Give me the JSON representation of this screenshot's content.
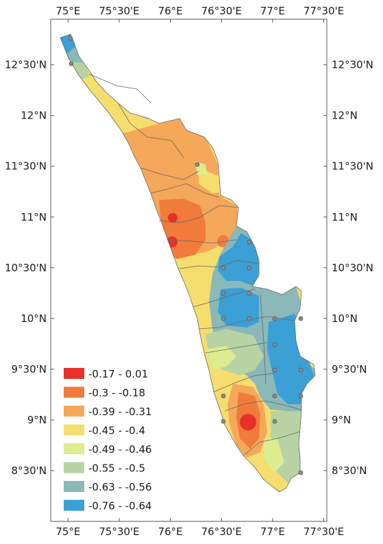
{
  "map": {
    "longitude_labels": [
      "75°E",
      "75°30'E",
      "76°E",
      "76°30'E",
      "77°E",
      "77°30'E"
    ],
    "longitude_values": [
      75.0,
      75.5,
      76.0,
      76.5,
      77.0,
      77.5
    ],
    "latitude_labels": [
      "12°30'N",
      "12°N",
      "11°30'N",
      "11°N",
      "10°30'N",
      "10°N",
      "9°30'N",
      "9°N",
      "8°30'N"
    ],
    "latitude_values": [
      12.5,
      12.0,
      11.5,
      11.0,
      10.5,
      10.0,
      9.5,
      9.0,
      8.5
    ],
    "extent": {
      "lon_min": 74.83,
      "lon_max": 77.53,
      "lat_min": 8.0,
      "lat_max": 12.95
    },
    "colors": {
      "class_1": "#e8302a",
      "class_2": "#f07b3a",
      "class_3": "#f5a85a",
      "class_4": "#f5dd6e",
      "class_5": "#dcec8f",
      "class_6": "#b8d3a3",
      "class_7": "#8bb8b8",
      "class_8": "#3aa0d6",
      "boundary": "#666666",
      "station": "#8a8a8a"
    }
  },
  "legend": {
    "items": [
      {
        "label": "-0.17 - 0.01",
        "color": "#e8302a"
      },
      {
        "label": "-0.3 - -0.18",
        "color": "#f07b3a"
      },
      {
        "label": "-0.39 - -0.31",
        "color": "#f5a85a"
      },
      {
        "label": "-0.45 - -0.4",
        "color": "#f5dd6e"
      },
      {
        "label": "-0.49 - -0.46",
        "color": "#dcec8f"
      },
      {
        "label": "-0.55 - -0.5",
        "color": "#b8d3a3"
      },
      {
        "label": "-0.63 - -0.56",
        "color": "#8bb8b8"
      },
      {
        "label": "-0.76 - -0.64",
        "color": "#3aa0d6"
      }
    ]
  }
}
